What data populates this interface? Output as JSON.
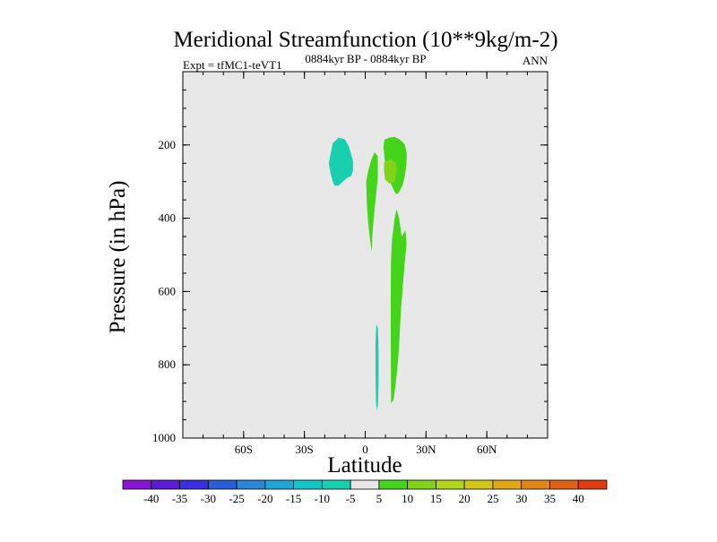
{
  "chart_data": {
    "type": "contour",
    "title": "Meridional Streamfunction (10**9kg/m-2)",
    "subtitle": "0884kyr BP - 0884kyr BP",
    "left_label": "Expt = tfMC1-teVT1",
    "right_label": "ANN",
    "xlabel": "Latitude",
    "ylabel": "Pressure (in hPa)",
    "xlim": [
      -90,
      90
    ],
    "ylim": [
      1000,
      0
    ],
    "x_ticks": [
      {
        "value": -60,
        "label": "60S"
      },
      {
        "value": -30,
        "label": "30S"
      },
      {
        "value": 0,
        "label": "0"
      },
      {
        "value": 30,
        "label": "30N"
      },
      {
        "value": 60,
        "label": "60N"
      }
    ],
    "y_ticks": [
      {
        "value": 200,
        "label": "200"
      },
      {
        "value": 400,
        "label": "400"
      },
      {
        "value": 600,
        "label": "600"
      },
      {
        "value": 800,
        "label": "800"
      },
      {
        "value": 1000,
        "label": "1000"
      }
    ],
    "background_color": "#e8e8e8",
    "colorbar": {
      "levels": [
        -40,
        -35,
        -30,
        -25,
        -20,
        -15,
        -10,
        -5,
        5,
        10,
        15,
        20,
        25,
        30,
        35,
        40
      ],
      "labels": [
        "-40",
        "-35",
        "-30",
        "-25",
        "-20",
        "-15",
        "-10",
        "-5",
        "5",
        "10",
        "15",
        "20",
        "25",
        "30",
        "35",
        "40"
      ],
      "colors": [
        "#8a14d6",
        "#5a1ad6",
        "#3a2ee0",
        "#2a5ed8",
        "#2a86d6",
        "#1ea6d4",
        "#12c6c8",
        "#18d0b0",
        "#e8e8e8",
        "#44d41a",
        "#82d21a",
        "#b2d61a",
        "#d4c618",
        "#e2a816",
        "#e08616",
        "#e06216",
        "#e03a10"
      ]
    },
    "regions": [
      {
        "name": "negative-cell-upper",
        "sign": "negative",
        "range": "-10 to -5",
        "color": "#18d0b0",
        "outline": [
          [
            -13,
            180
          ],
          [
            -10,
            185
          ],
          [
            -8,
            205
          ],
          [
            -7,
            225
          ],
          [
            -6,
            245
          ],
          [
            -6,
            270
          ],
          [
            -7,
            285
          ],
          [
            -9,
            290
          ],
          [
            -11,
            300
          ],
          [
            -13,
            310
          ],
          [
            -15,
            312
          ],
          [
            -16,
            300
          ],
          [
            -17,
            280
          ],
          [
            -18,
            250
          ],
          [
            -17,
            220
          ],
          [
            -16,
            195
          ]
        ]
      },
      {
        "name": "negative-cell-lower",
        "sign": "negative",
        "range": "-10 to -5",
        "color": "#18d0b0",
        "outline": [
          [
            5.5,
            690
          ],
          [
            6.3,
            700
          ],
          [
            6.6,
            760
          ],
          [
            6.6,
            850
          ],
          [
            6.3,
            910
          ],
          [
            5.8,
            925
          ],
          [
            5.3,
            900
          ],
          [
            5.1,
            820
          ],
          [
            5.1,
            740
          ]
        ]
      },
      {
        "name": "positive-cell-left",
        "sign": "positive",
        "range": "5 to 10",
        "color": "#44d41a",
        "outline": [
          [
            4.6,
            220
          ],
          [
            6.2,
            230
          ],
          [
            6.2,
            290
          ],
          [
            5.5,
            330
          ],
          [
            4.5,
            380
          ],
          [
            3.6,
            440
          ],
          [
            3.2,
            490
          ],
          [
            2.3,
            455
          ],
          [
            1.4,
            410
          ],
          [
            0.8,
            360
          ],
          [
            0.5,
            300
          ],
          [
            1.5,
            270
          ],
          [
            3,
            240
          ]
        ]
      },
      {
        "name": "positive-cell-upper-right",
        "sign": "positive",
        "range": "5 to 10",
        "color": "#44d41a",
        "outline": [
          [
            9.5,
            185
          ],
          [
            12,
            180
          ],
          [
            14.5,
            178
          ],
          [
            17,
            185
          ],
          [
            19.5,
            198
          ],
          [
            20.5,
            225
          ],
          [
            20.3,
            255
          ],
          [
            19.5,
            285
          ],
          [
            18.5,
            310
          ],
          [
            16.5,
            330
          ],
          [
            15.6,
            335
          ],
          [
            14.5,
            328
          ],
          [
            13,
            310
          ],
          [
            11.5,
            290
          ],
          [
            10.2,
            270
          ],
          [
            9.5,
            235
          ],
          [
            9,
            205
          ]
        ]
      },
      {
        "name": "positive-core-upper-right",
        "sign": "positive",
        "range": "10 to 15",
        "color": "#82d21a",
        "outline": [
          [
            9.3,
            247
          ],
          [
            12.5,
            240
          ],
          [
            15.2,
            247
          ],
          [
            15.5,
            275
          ],
          [
            14.5,
            300
          ],
          [
            12,
            305
          ],
          [
            9.8,
            295
          ],
          [
            9.3,
            270
          ]
        ]
      },
      {
        "name": "positive-cell-lower-right",
        "sign": "positive",
        "range": "5 to 10",
        "color": "#44d41a",
        "outline": [
          [
            19.8,
            432
          ],
          [
            20.4,
            470
          ],
          [
            19.2,
            540
          ],
          [
            18.2,
            610
          ],
          [
            17.5,
            660
          ],
          [
            17,
            720
          ],
          [
            16.3,
            780
          ],
          [
            15.3,
            840
          ],
          [
            14,
            895
          ],
          [
            12.8,
            905
          ],
          [
            12.7,
            840
          ],
          [
            12.6,
            720
          ],
          [
            12.6,
            600
          ],
          [
            12.7,
            520
          ],
          [
            13.2,
            460
          ],
          [
            14.5,
            400
          ],
          [
            15.5,
            375
          ],
          [
            16.7,
            400
          ],
          [
            18,
            450
          ]
        ]
      }
    ]
  }
}
